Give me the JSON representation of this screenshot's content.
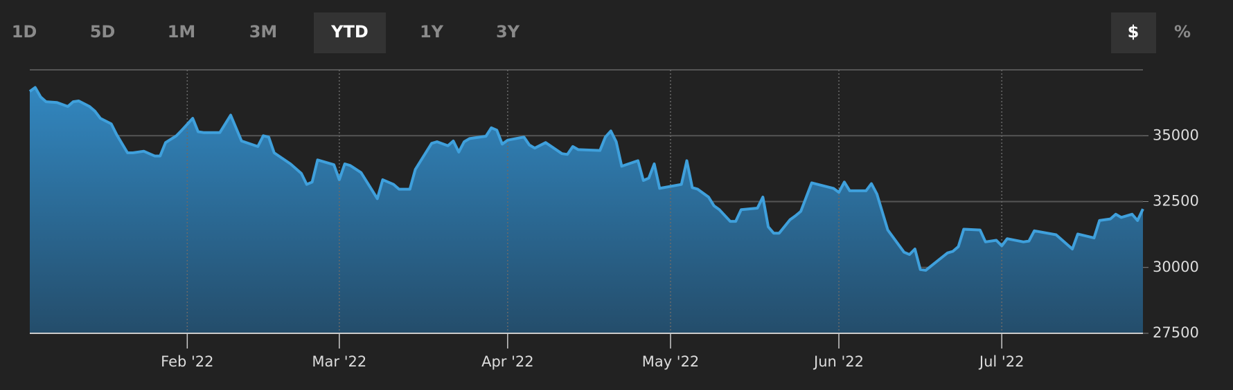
{
  "toolbar": {
    "ranges": [
      "1D",
      "5D",
      "1M",
      "3M",
      "YTD",
      "1Y",
      "3Y"
    ],
    "active_range": "YTD",
    "units": [
      "$",
      "%"
    ],
    "active_unit": "$"
  },
  "chart_data": {
    "type": "area",
    "x": [
      2,
      3,
      4,
      5,
      7,
      9,
      10,
      11,
      13,
      14,
      15,
      17,
      18,
      20,
      21,
      23,
      24,
      25,
      26,
      27,
      29,
      30,
      32,
      33,
      34,
      37,
      39,
      41,
      44,
      45,
      46,
      47,
      50,
      52,
      53,
      54,
      55,
      58,
      59,
      60,
      61,
      63,
      65,
      66,
      67,
      69,
      70,
      72,
      73,
      76,
      77,
      79,
      80,
      81,
      82,
      83,
      86,
      87,
      88,
      89,
      90,
      93,
      94,
      95,
      97,
      100,
      101,
      102,
      103,
      107,
      108,
      109,
      110,
      111,
      114,
      115,
      116,
      117,
      118,
      122,
      123,
      124,
      125,
      127,
      128,
      129,
      131,
      132,
      133,
      136,
      137,
      138,
      139,
      140,
      142,
      143,
      144,
      146,
      150,
      151,
      152,
      153,
      156,
      157,
      158,
      160,
      163,
      164,
      165,
      166,
      167,
      171,
      172,
      173,
      174,
      177,
      178,
      180,
      181,
      182,
      185,
      186,
      187,
      191,
      194,
      195,
      198,
      199,
      201,
      202,
      203,
      205,
      206,
      207
    ],
    "values": [
      36680,
      36830,
      36470,
      36290,
      36260,
      36110,
      36290,
      36320,
      36110,
      35930,
      35660,
      35450,
      35040,
      34350,
      34350,
      34410,
      34320,
      34230,
      34230,
      34740,
      35000,
      35210,
      35660,
      35150,
      35120,
      35120,
      35780,
      34800,
      34590,
      35000,
      34950,
      34350,
      33930,
      33570,
      33150,
      33240,
      34080,
      33900,
      33330,
      33930,
      33870,
      33600,
      32940,
      32610,
      33330,
      33150,
      32970,
      32970,
      33720,
      34710,
      34770,
      34620,
      34800,
      34380,
      34770,
      34890,
      34980,
      35300,
      35210,
      34680,
      34830,
      34950,
      34650,
      34530,
      34740,
      34320,
      34290,
      34590,
      34470,
      34440,
      34950,
      35180,
      34770,
      33840,
      34050,
      33300,
      33390,
      33930,
      33000,
      33150,
      34050,
      33030,
      32970,
      32670,
      32340,
      32190,
      31750,
      31750,
      32190,
      32250,
      32670,
      31540,
      31300,
      31300,
      31810,
      31960,
      32130,
      33210,
      33000,
      32850,
      33240,
      32910,
      32910,
      33180,
      32790,
      31420,
      30580,
      30490,
      30700,
      29920,
      29890,
      30550,
      30610,
      30790,
      31450,
      31420,
      30970,
      31030,
      30820,
      31090,
      30970,
      31000,
      31390,
      31240,
      30700,
      31270,
      31120,
      31780,
      31840,
      32020,
      31900,
      32020,
      31780,
      32220
    ],
    "color": "#3fa0dc",
    "xlim": [
      2,
      207
    ],
    "xticks": [
      {
        "value": 31,
        "label": "Feb '22"
      },
      {
        "value": 59,
        "label": "Mar '22"
      },
      {
        "value": 90,
        "label": "Apr '22"
      },
      {
        "value": 120,
        "label": "May '22"
      },
      {
        "value": 151,
        "label": "Jun '22"
      },
      {
        "value": 181,
        "label": "Jul '22"
      }
    ],
    "ylim": [
      27500,
      37500
    ],
    "yticks": [
      27500,
      30000,
      32500,
      35000
    ],
    "grid": true
  }
}
